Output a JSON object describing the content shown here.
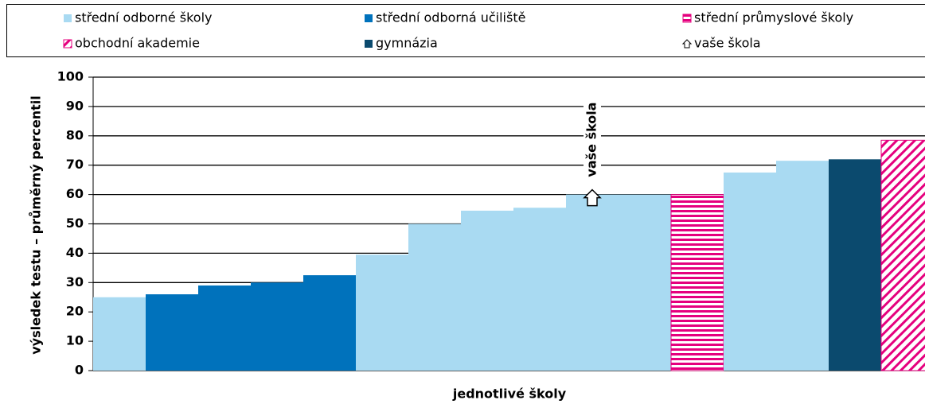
{
  "chart_data": {
    "type": "bar",
    "series": [
      {
        "name": "střední odborné školy",
        "color": "#a9daf2",
        "pattern": "solid"
      },
      {
        "name": "střední odborná učiliště",
        "color": "#0072bc",
        "pattern": "solid"
      },
      {
        "name": "střední průmyslové školy",
        "color": "#e5007e",
        "pattern": "horizontal"
      },
      {
        "name": "obchodní akademie",
        "color": "#e5007e",
        "pattern": "diagonal"
      },
      {
        "name": "gymnázia",
        "color": "#0b4a6e",
        "pattern": "solid"
      },
      {
        "name": "vaše škola",
        "color": "#000000",
        "pattern": "marker"
      }
    ],
    "categories": [
      null,
      null,
      null,
      null,
      null,
      null,
      null,
      null,
      null,
      null,
      null,
      null,
      null,
      null,
      null,
      null
    ],
    "values": [
      25,
      26,
      29,
      30,
      32.5,
      39.5,
      50,
      54.5,
      55.5,
      60,
      60,
      60,
      67.5,
      71.5,
      72,
      78.5
    ],
    "value_series": [
      0,
      1,
      1,
      1,
      1,
      0,
      0,
      0,
      0,
      0,
      0,
      2,
      0,
      0,
      4,
      3
    ],
    "marker": {
      "index": 9,
      "label": "vaše škola"
    },
    "ylabel": "výsledek testu – průměrný percentil",
    "xlabel": "jednotlivé školy",
    "ylim": [
      0,
      100
    ],
    "yticks": [
      0,
      10,
      20,
      30,
      40,
      50,
      60,
      70,
      80,
      90,
      100
    ],
    "grid": true
  }
}
